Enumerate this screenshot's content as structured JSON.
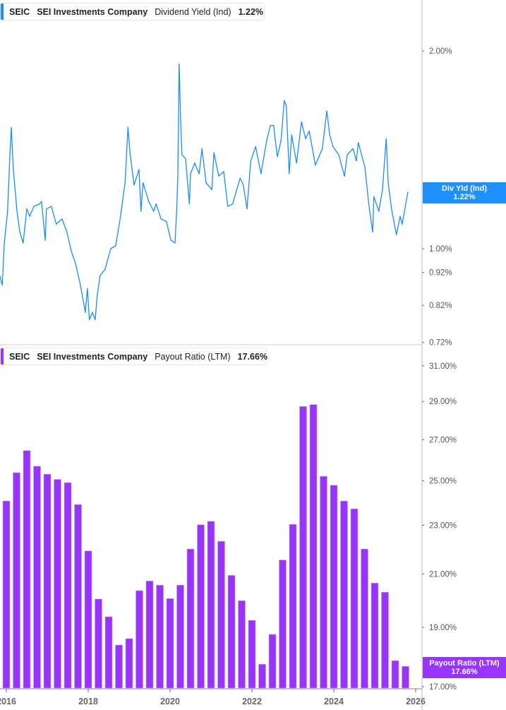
{
  "colors": {
    "dividend_line": "#1a8cff",
    "payout_bar": "#9933ff",
    "dividend_tag": "#1e90ff",
    "payout_tag": "#9933ff"
  },
  "top_legend": {
    "ticker": "SEIC",
    "company": "SEI Investments Company",
    "metric": "Dividend Yield (Ind)",
    "value": "1.22%"
  },
  "bottom_legend": {
    "ticker": "SEIC",
    "company": "SEI Investments Company",
    "metric": "Payout Ratio (LTM)",
    "value": "17.66%"
  },
  "top_tag": {
    "label": "Div Yld (Ind)",
    "value": "1.22%"
  },
  "bottom_tag": {
    "label": "Payout Ratio (LTM)",
    "value": "17.66%"
  },
  "chart_data": [
    {
      "type": "line",
      "series_name": "Dividend Yield (Ind)",
      "y_scale": "log",
      "ylim": [
        0.72,
        2.39
      ],
      "xlim": [
        2015.84,
        2026.2
      ],
      "yticks": [
        {
          "v": 2.0,
          "label": "2.00%"
        },
        {
          "v": 1.0,
          "label": "1.00%"
        },
        {
          "v": 0.92,
          "label": "0.92%"
        },
        {
          "v": 0.82,
          "label": "0.82%"
        },
        {
          "v": 0.72,
          "label": "0.72%"
        }
      ],
      "x": [
        2015.84,
        2015.9,
        2015.95,
        2016.03,
        2016.09,
        2016.12,
        2016.17,
        2016.26,
        2016.33,
        2016.41,
        2016.5,
        2016.57,
        2016.67,
        2016.81,
        2016.86,
        2016.95,
        2016.98,
        2017.1,
        2017.22,
        2017.36,
        2017.48,
        2017.59,
        2017.69,
        2017.81,
        2017.93,
        2017.98,
        2018.03,
        2018.1,
        2018.17,
        2018.22,
        2018.29,
        2018.41,
        2018.55,
        2018.67,
        2018.79,
        2018.9,
        2018.97,
        2019.02,
        2019.12,
        2019.24,
        2019.29,
        2019.34,
        2019.48,
        2019.6,
        2019.66,
        2019.78,
        2019.91,
        2020.02,
        2020.12,
        2020.16,
        2020.19,
        2020.22,
        2020.26,
        2020.29,
        2020.38,
        2020.47,
        2020.5,
        2020.6,
        2020.71,
        2020.78,
        2020.88,
        2021.02,
        2021.07,
        2021.19,
        2021.31,
        2021.41,
        2021.53,
        2021.71,
        2021.79,
        2021.88,
        2021.97,
        2022.09,
        2022.22,
        2022.36,
        2022.45,
        2022.53,
        2022.62,
        2022.71,
        2022.79,
        2022.84,
        2022.91,
        2022.97,
        2023.09,
        2023.21,
        2023.31,
        2023.4,
        2023.55,
        2023.72,
        2023.83,
        2023.9,
        2023.98,
        2024.12,
        2024.26,
        2024.33,
        2024.47,
        2024.55,
        2024.6,
        2024.76,
        2024.86,
        2024.95,
        2024.98,
        2025.1,
        2025.19,
        2025.28,
        2025.33,
        2025.41,
        2025.53,
        2025.62,
        2025.67,
        2025.79,
        2025.81
      ],
      "y": [
        0.91,
        0.88,
        1.02,
        1.14,
        1.4,
        1.53,
        1.32,
        1.14,
        1.06,
        1.02,
        1.15,
        1.12,
        1.16,
        1.17,
        1.18,
        1.03,
        1.15,
        1.16,
        1.09,
        1.11,
        1.06,
        0.99,
        0.95,
        0.88,
        0.8,
        0.87,
        0.78,
        0.8,
        0.78,
        0.85,
        0.91,
        0.93,
        1.0,
        1.01,
        1.12,
        1.26,
        1.53,
        1.4,
        1.25,
        1.32,
        1.14,
        1.26,
        1.18,
        1.14,
        1.17,
        1.11,
        1.1,
        1.03,
        1.02,
        1.14,
        1.29,
        1.91,
        1.55,
        1.39,
        1.37,
        1.17,
        1.3,
        1.35,
        1.3,
        1.42,
        1.26,
        1.23,
        1.4,
        1.29,
        1.31,
        1.16,
        1.17,
        1.28,
        1.25,
        1.15,
        1.36,
        1.43,
        1.3,
        1.46,
        1.54,
        1.54,
        1.38,
        1.46,
        1.68,
        1.65,
        1.3,
        1.49,
        1.35,
        1.56,
        1.47,
        1.51,
        1.34,
        1.42,
        1.62,
        1.49,
        1.43,
        1.39,
        1.29,
        1.39,
        1.42,
        1.36,
        1.45,
        1.33,
        1.16,
        1.06,
        1.2,
        1.14,
        1.23,
        1.47,
        1.26,
        1.15,
        1.05,
        1.12,
        1.09,
        1.2,
        1.22
      ]
    },
    {
      "type": "bar",
      "series_name": "Payout Ratio (LTM)",
      "y_scale": "log",
      "ylim": [
        17.0,
        32.0
      ],
      "xlim": [
        2015.84,
        2026.2
      ],
      "yticks": [
        {
          "v": 31,
          "label": "31.00%"
        },
        {
          "v": 29,
          "label": "29.00%"
        },
        {
          "v": 27,
          "label": "27.00%"
        },
        {
          "v": 25,
          "label": "25.00%"
        },
        {
          "v": 23,
          "label": "23.00%"
        },
        {
          "v": 21,
          "label": "21.00%"
        },
        {
          "v": 19,
          "label": "19.00%"
        },
        {
          "v": 17,
          "label": "17.00%"
        }
      ],
      "xticks": [
        {
          "v": 2016,
          "label": "2016"
        },
        {
          "v": 2018,
          "label": "2018"
        },
        {
          "v": 2020,
          "label": "2020"
        },
        {
          "v": 2022,
          "label": "2022"
        },
        {
          "v": 2024,
          "label": "2024"
        },
        {
          "v": 2026,
          "label": "2026"
        }
      ],
      "x": [
        2016.0,
        2016.25,
        2016.5,
        2016.75,
        2017.0,
        2017.25,
        2017.5,
        2017.75,
        2018.0,
        2018.25,
        2018.5,
        2018.75,
        2019.0,
        2019.25,
        2019.5,
        2019.75,
        2020.0,
        2020.25,
        2020.5,
        2020.75,
        2021.0,
        2021.25,
        2021.5,
        2021.75,
        2022.0,
        2022.25,
        2022.5,
        2022.75,
        2023.0,
        2023.25,
        2023.5,
        2023.75,
        2024.0,
        2024.25,
        2024.5,
        2024.75,
        2025.0,
        2025.25,
        2025.5,
        2025.75
      ],
      "values": [
        24.07,
        25.38,
        26.45,
        25.69,
        25.31,
        25.06,
        24.91,
        23.91,
        21.92,
        20.03,
        19.38,
        18.38,
        18.6,
        20.35,
        20.72,
        20.56,
        20.05,
        20.56,
        22.0,
        23.02,
        23.17,
        22.32,
        20.94,
        19.97,
        19.25,
        17.73,
        18.75,
        21.55,
        23.04,
        28.73,
        28.83,
        25.21,
        24.79,
        24.07,
        23.72,
        22.0,
        20.64,
        20.29,
        17.85,
        17.66
      ]
    }
  ]
}
